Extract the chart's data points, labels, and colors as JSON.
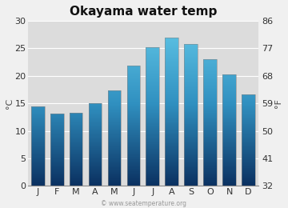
{
  "title": "Okayama water temp",
  "months": [
    "J",
    "F",
    "M",
    "A",
    "M",
    "J",
    "J",
    "A",
    "S",
    "O",
    "N",
    "D"
  ],
  "values_c": [
    14.5,
    13.2,
    13.3,
    15.0,
    17.4,
    21.8,
    25.2,
    27.0,
    25.7,
    23.0,
    20.3,
    16.6
  ],
  "ylabel_left": "°C",
  "ylabel_right": "°F",
  "yticks_c": [
    0,
    5,
    10,
    15,
    20,
    25,
    30
  ],
  "yticks_f": [
    32,
    41,
    50,
    59,
    68,
    77,
    86
  ],
  "ylim_c": [
    0,
    30
  ],
  "plot_bg_color": "#dcdcdc",
  "fig_bg_color": "#f0f0f0",
  "bar_color_top": "#62c8e8",
  "bar_color_mid": "#3090c0",
  "bar_color_bottom": "#0a3060",
  "bar_outline": "#888888",
  "watermark": "© www.seatemperature.org",
  "title_fontsize": 11,
  "tick_fontsize": 8,
  "bar_width": 0.7
}
